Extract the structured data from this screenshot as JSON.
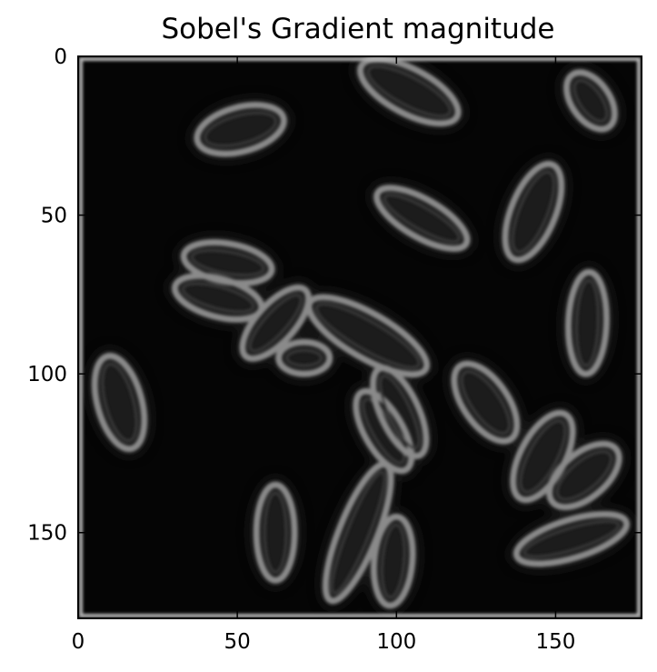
{
  "figure": {
    "title": "Sobel's Gradient magnitude",
    "axes": {
      "x_ticks": [
        0,
        50,
        100,
        150
      ],
      "y_ticks": [
        0,
        50,
        100,
        150
      ],
      "xlim": [
        0,
        177
      ],
      "ylim": [
        177,
        0
      ]
    },
    "colors": {
      "background": "#ffffff",
      "image_bg": "#050505",
      "edge": "#8a8a8a"
    },
    "cells": [
      {
        "cx": 51,
        "cy": 23,
        "rx": 14,
        "ry": 7,
        "rot": -15
      },
      {
        "cx": 104,
        "cy": 11,
        "rx": 17,
        "ry": 7,
        "rot": 28
      },
      {
        "cx": 161,
        "cy": 14,
        "rx": 10,
        "ry": 6,
        "rot": 55
      },
      {
        "cx": 108,
        "cy": 51,
        "rx": 16,
        "ry": 6,
        "rot": 30
      },
      {
        "cx": 143,
        "cy": 49,
        "rx": 16,
        "ry": 7,
        "rot": -68
      },
      {
        "cx": 47,
        "cy": 65,
        "rx": 14,
        "ry": 6,
        "rot": 10
      },
      {
        "cx": 44,
        "cy": 76,
        "rx": 14,
        "ry": 6,
        "rot": 15
      },
      {
        "cx": 62,
        "cy": 84,
        "rx": 14,
        "ry": 6,
        "rot": -48
      },
      {
        "cx": 71,
        "cy": 95,
        "rx": 8,
        "ry": 5,
        "rot": 0
      },
      {
        "cx": 91,
        "cy": 88,
        "rx": 21,
        "ry": 7,
        "rot": 30
      },
      {
        "cx": 160,
        "cy": 84,
        "rx": 16,
        "ry": 6,
        "rot": -88
      },
      {
        "cx": 13,
        "cy": 109,
        "rx": 15,
        "ry": 7,
        "rot": 75
      },
      {
        "cx": 96,
        "cy": 118,
        "rx": 14,
        "ry": 6,
        "rot": 60
      },
      {
        "cx": 101,
        "cy": 112,
        "rx": 15,
        "ry": 6,
        "rot": 65
      },
      {
        "cx": 128,
        "cy": 109,
        "rx": 14,
        "ry": 7,
        "rot": 55
      },
      {
        "cx": 146,
        "cy": 126,
        "rx": 15,
        "ry": 7,
        "rot": -62
      },
      {
        "cx": 159,
        "cy": 132,
        "rx": 13,
        "ry": 7,
        "rot": -40
      },
      {
        "cx": 62,
        "cy": 150,
        "rx": 15,
        "ry": 6,
        "rot": -90
      },
      {
        "cx": 88,
        "cy": 150,
        "rx": 23,
        "ry": 6,
        "rot": -68
      },
      {
        "cx": 99,
        "cy": 159,
        "rx": 14,
        "ry": 6,
        "rot": -85
      },
      {
        "cx": 155,
        "cy": 152,
        "rx": 18,
        "ry": 6,
        "rot": -17
      }
    ]
  }
}
